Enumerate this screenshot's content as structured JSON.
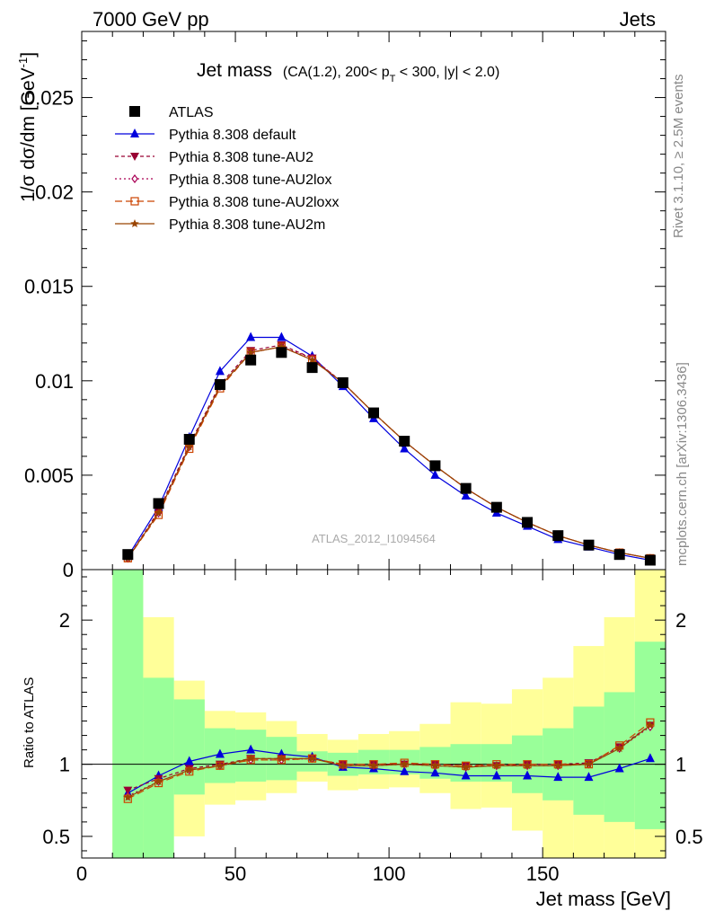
{
  "header": {
    "left": "7000 GeV pp",
    "right": "Jets"
  },
  "chart_data": {
    "type": "line",
    "title": "Jet mass",
    "title_detail_prefix": "(CA(1.2), 200< p",
    "title_detail_sub": "T",
    "title_detail_suffix": " < 300, |y| < 2.0)",
    "ylabel_main": "1/σ dσ/dm [GeV",
    "ylabel_main_sup": "-1",
    "ylabel_main_suffix": "]",
    "ylabel_ratio": "Ratio to ATLAS",
    "xlabel": "Jet mass [GeV]",
    "watermark": "ATLAS_2012_I1094564",
    "side_label_top": "Rivet 3.1.10, ≥ 2.5M events",
    "side_label_bottom": "mcplots.cern.ch [arXiv:1306.3436]",
    "xlim": [
      0,
      190
    ],
    "ylim_main": [
      0,
      0.0285
    ],
    "ylim_ratio": [
      0.35,
      2.35
    ],
    "x_ticks": [
      "0",
      "50",
      "100",
      "150"
    ],
    "y_ticks_main": [
      "0",
      "0.005",
      "0.01",
      "0.015",
      "0.02",
      "0.025"
    ],
    "y_ticks_ratio": [
      "0.5",
      "1",
      "2"
    ],
    "bin_edges": [
      10,
      20,
      30,
      40,
      50,
      60,
      70,
      80,
      90,
      100,
      110,
      120,
      130,
      140,
      150,
      160,
      170,
      180,
      190
    ],
    "x": [
      15,
      25,
      35,
      45,
      55,
      65,
      75,
      85,
      95,
      105,
      115,
      125,
      135,
      145,
      155,
      165,
      175,
      185
    ],
    "data": {
      "name": "ATLAS",
      "values": [
        0.0008,
        0.0035,
        0.0069,
        0.0098,
        0.0111,
        0.0115,
        0.0107,
        0.0099,
        0.0083,
        0.0068,
        0.0055,
        0.0043,
        0.0033,
        0.0025,
        0.0018,
        0.0013,
        0.0008,
        0.0005
      ]
    },
    "series": [
      {
        "name": "Pythia 8.308 default",
        "color": "#0000dd",
        "marker": "triangle-up",
        "dash": "",
        "values": [
          0.0007,
          0.0033,
          0.007,
          0.0105,
          0.0123,
          0.0123,
          0.0113,
          0.0097,
          0.008,
          0.0064,
          0.005,
          0.0039,
          0.003,
          0.0023,
          0.0016,
          0.0012,
          0.0008,
          0.0005
        ],
        "ratio": [
          0.8,
          0.92,
          1.02,
          1.07,
          1.1,
          1.07,
          1.05,
          0.98,
          0.97,
          0.95,
          0.94,
          0.92,
          0.92,
          0.92,
          0.91,
          0.91,
          0.97,
          1.04
        ]
      },
      {
        "name": "Pythia 8.308 tune-AU2",
        "color": "#990033",
        "marker": "triangle-down",
        "dash": "4,3",
        "values": [
          0.0006,
          0.0031,
          0.0066,
          0.0098,
          0.0116,
          0.0119,
          0.0112,
          0.0099,
          0.0083,
          0.0068,
          0.0055,
          0.0043,
          0.0033,
          0.0025,
          0.0018,
          0.0013,
          0.0009,
          0.0006
        ],
        "ratio": [
          0.82,
          0.9,
          0.97,
          1.0,
          1.04,
          1.04,
          1.04,
          1.0,
          1.0,
          1.0,
          1.0,
          0.99,
          0.99,
          1.0,
          1.0,
          1.01,
          1.12,
          1.27
        ]
      },
      {
        "name": "Pythia 8.308 tune-AU2lox",
        "color": "#aa0055",
        "marker": "diamond",
        "dash": "2,3",
        "values": [
          0.0006,
          0.003,
          0.0065,
          0.0097,
          0.0115,
          0.0118,
          0.0112,
          0.0099,
          0.0083,
          0.0068,
          0.0055,
          0.0043,
          0.0033,
          0.0025,
          0.0018,
          0.0013,
          0.0009,
          0.0006
        ],
        "ratio": [
          0.78,
          0.88,
          0.96,
          0.99,
          1.03,
          1.03,
          1.04,
          0.99,
          0.99,
          1.0,
          0.99,
          0.98,
          0.99,
          0.99,
          0.99,
          1.0,
          1.11,
          1.26
        ]
      },
      {
        "name": "Pythia 8.308 tune-AU2loxx",
        "color": "#cc4400",
        "marker": "square-open",
        "dash": "8,4",
        "values": [
          0.0006,
          0.0029,
          0.0064,
          0.0096,
          0.0115,
          0.0118,
          0.0111,
          0.0099,
          0.0083,
          0.0068,
          0.0055,
          0.0043,
          0.0033,
          0.0025,
          0.0018,
          0.0013,
          0.0009,
          0.0006
        ],
        "ratio": [
          0.76,
          0.87,
          0.95,
          0.99,
          1.03,
          1.03,
          1.04,
          1.0,
          1.0,
          1.01,
          1.0,
          0.99,
          1.0,
          1.0,
          1.0,
          1.0,
          1.13,
          1.29
        ]
      },
      {
        "name": "Pythia 8.308 tune-AU2m",
        "color": "#994400",
        "marker": "star",
        "dash": "",
        "values": [
          0.0006,
          0.003,
          0.0065,
          0.0097,
          0.0115,
          0.0118,
          0.0111,
          0.0099,
          0.0083,
          0.0068,
          0.0055,
          0.0043,
          0.0033,
          0.0025,
          0.0018,
          0.0013,
          0.0009,
          0.0006
        ],
        "ratio": [
          0.77,
          0.88,
          0.96,
          0.99,
          1.04,
          1.04,
          1.04,
          0.99,
          0.99,
          1.0,
          0.99,
          0.98,
          0.99,
          0.99,
          0.99,
          1.0,
          1.11,
          1.27
        ]
      }
    ],
    "bands": {
      "inner_color": "#99ff99",
      "outer_color": "#ffff99",
      "inner": [
        [
          0.35,
          2.35
        ],
        [
          0.35,
          1.6
        ],
        [
          0.79,
          1.45
        ],
        [
          0.87,
          1.25
        ],
        [
          0.88,
          1.24
        ],
        [
          0.89,
          1.19
        ],
        [
          0.95,
          1.09
        ],
        [
          0.92,
          1.08
        ],
        [
          0.93,
          1.1
        ],
        [
          0.93,
          1.1
        ],
        [
          0.9,
          1.12
        ],
        [
          0.88,
          1.14
        ],
        [
          0.88,
          1.14
        ],
        [
          0.8,
          1.2
        ],
        [
          0.75,
          1.25
        ],
        [
          0.65,
          1.4
        ],
        [
          0.6,
          1.5
        ],
        [
          0.55,
          1.85
        ]
      ],
      "outer": [
        [
          0.35,
          2.35
        ],
        [
          0.35,
          2.02
        ],
        [
          0.5,
          1.58
        ],
        [
          0.72,
          1.37
        ],
        [
          0.75,
          1.36
        ],
        [
          0.8,
          1.3
        ],
        [
          0.88,
          1.21
        ],
        [
          0.82,
          1.17
        ],
        [
          0.83,
          1.21
        ],
        [
          0.84,
          1.23
        ],
        [
          0.8,
          1.28
        ],
        [
          0.69,
          1.43
        ],
        [
          0.7,
          1.42
        ],
        [
          0.54,
          1.52
        ],
        [
          0.35,
          1.6
        ],
        [
          0.35,
          1.82
        ],
        [
          0.35,
          2.02
        ],
        [
          0.35,
          2.35
        ]
      ]
    }
  }
}
